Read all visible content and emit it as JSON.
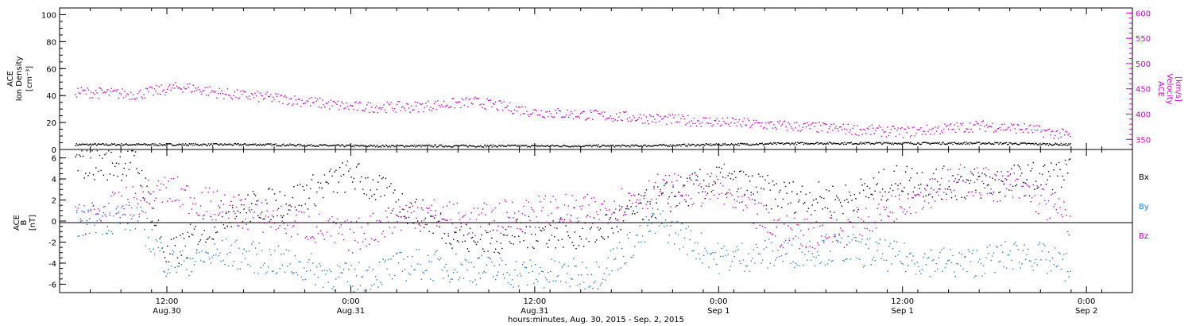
{
  "colors": {
    "density": "#000000",
    "velocity": "#cc00cc",
    "bx": "#000000",
    "by": "#1f7fd6",
    "bz": "#cc00cc"
  },
  "x_axis": {
    "title": "hours:minutes, Aug. 30, 2015 - Sep. 2, 2015",
    "tick_times": [
      "12:00",
      "0:00",
      "12:00",
      "0:00",
      "12:00",
      "0:00"
    ],
    "tick_dates": [
      "Aug.30",
      "Aug.31",
      "Aug.31",
      "Sep 1",
      "Sep 1",
      "Sep 2"
    ]
  },
  "top_panel": {
    "left_label": [
      "ACE",
      "Ion Density",
      "[cm⁻³]"
    ],
    "right_label": [
      "ACE",
      "Velocity",
      "[km/s]"
    ],
    "left_ticks": [
      "0",
      "20",
      "40",
      "60",
      "80",
      "100"
    ],
    "right_ticks": [
      "350",
      "400",
      "450",
      "500",
      "550",
      "600"
    ]
  },
  "bottom_panel": {
    "left_label": [
      "ACE",
      "B",
      "[nT]"
    ],
    "left_ticks": [
      "-6",
      "-4",
      "-2",
      "0",
      "2",
      "4",
      "6"
    ],
    "legend": [
      "Bx",
      "By",
      "Bz"
    ]
  },
  "chart_data": [
    {
      "type": "scatter",
      "title": "",
      "xlabel": "hours:minutes, Aug. 30, 2015 - Sep. 2, 2015",
      "x_range": [
        "2015-08-30 05:00",
        "2015-09-02 03:00"
      ],
      "ylabel": "ACE Ion Density [cm^-3]",
      "ylim": [
        0,
        105
      ],
      "y2label": "ACE Velocity [km/s]",
      "y2lim": [
        330,
        610
      ],
      "series": [
        {
          "name": "Ion Density",
          "axis": "left",
          "x": [
            "2015-08-30 06:00",
            "2015-08-30 12:00",
            "2015-08-30 18:00",
            "2015-08-31 00:00",
            "2015-08-31 06:00",
            "2015-08-31 12:00",
            "2015-08-31 18:00",
            "2015-09-01 00:00",
            "2015-09-01 06:00",
            "2015-09-01 12:00",
            "2015-09-01 18:00",
            "2015-09-01 23:00"
          ],
          "values": [
            4,
            4,
            4,
            3,
            3,
            3,
            3,
            4,
            5,
            5,
            5,
            4
          ]
        },
        {
          "name": "Velocity",
          "axis": "right",
          "x": [
            "2015-08-30 06:00",
            "2015-08-30 10:00",
            "2015-08-30 13:00",
            "2015-08-30 16:00",
            "2015-08-30 20:00",
            "2015-08-31 00:00",
            "2015-08-31 04:00",
            "2015-08-31 08:00",
            "2015-08-31 12:00",
            "2015-08-31 18:00",
            "2015-09-01 00:00",
            "2015-09-01 06:00",
            "2015-09-01 12:00",
            "2015-09-01 17:00",
            "2015-09-01 20:00",
            "2015-09-01 23:00"
          ],
          "values": [
            445,
            440,
            455,
            440,
            430,
            415,
            415,
            425,
            405,
            395,
            385,
            375,
            365,
            378,
            372,
            358
          ]
        }
      ]
    },
    {
      "type": "scatter",
      "title": "",
      "xlabel": "hours:minutes, Aug. 30, 2015 - Sep. 2, 2015",
      "x_range": [
        "2015-08-30 05:00",
        "2015-09-02 03:00"
      ],
      "ylabel": "ACE B [nT]",
      "ylim": [
        -6.8,
        6.8
      ],
      "series": [
        {
          "name": "Bx",
          "x": [
            "2015-08-30 06:00",
            "2015-08-30 10:00",
            "2015-08-30 12:00",
            "2015-08-30 16:00",
            "2015-08-30 20:00",
            "2015-08-31 00:00",
            "2015-08-31 04:00",
            "2015-08-31 08:00",
            "2015-08-31 12:00",
            "2015-08-31 16:00",
            "2015-08-31 20:00",
            "2015-09-01 00:00",
            "2015-09-01 04:00",
            "2015-09-01 08:00",
            "2015-09-01 12:00",
            "2015-09-01 16:00",
            "2015-09-01 20:00",
            "2015-09-01 23:00"
          ],
          "values": [
            5.5,
            5.5,
            -3.5,
            1,
            2,
            4.5,
            1,
            -2,
            -1,
            -1,
            2,
            4,
            2.5,
            2,
            4,
            3.5,
            4,
            4.5
          ]
        },
        {
          "name": "By",
          "x": [
            "2015-08-30 06:00",
            "2015-08-30 10:00",
            "2015-08-30 12:00",
            "2015-08-30 16:00",
            "2015-08-30 20:00",
            "2015-08-31 00:00",
            "2015-08-31 04:00",
            "2015-08-31 08:00",
            "2015-08-31 12:00",
            "2015-08-31 16:00",
            "2015-08-31 20:00",
            "2015-09-01 00:00",
            "2015-09-01 04:00",
            "2015-09-01 08:00",
            "2015-09-01 12:00",
            "2015-09-01 16:00",
            "2015-09-01 20:00",
            "2015-09-01 23:00"
          ],
          "values": [
            0,
            0.5,
            -4,
            -3,
            -4,
            -5.5,
            -4,
            -4.5,
            -5,
            -5,
            0,
            -3.5,
            -3,
            -2.5,
            -3.5,
            -4,
            -3,
            -4.5
          ]
        },
        {
          "name": "Bz",
          "x": [
            "2015-08-30 06:00",
            "2015-08-30 10:00",
            "2015-08-30 12:00",
            "2015-08-30 16:00",
            "2015-08-30 20:00",
            "2015-08-31 00:00",
            "2015-08-31 04:00",
            "2015-08-31 08:00",
            "2015-08-31 12:00",
            "2015-08-31 16:00",
            "2015-08-31 20:00",
            "2015-09-01 00:00",
            "2015-09-01 04:00",
            "2015-09-01 08:00",
            "2015-09-01 12:00",
            "2015-09-01 16:00",
            "2015-09-01 20:00",
            "2015-09-01 23:00"
          ],
          "values": [
            0,
            2,
            3,
            1,
            0,
            -1.5,
            1,
            0,
            1,
            1,
            3,
            3,
            -1,
            -1,
            2,
            4,
            3,
            0
          ]
        }
      ]
    }
  ]
}
